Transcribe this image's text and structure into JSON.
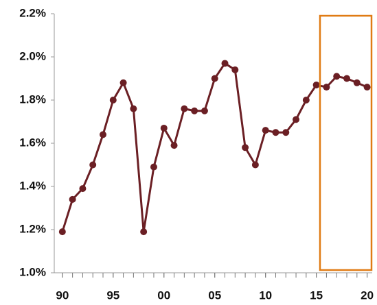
{
  "chart_data": {
    "type": "line",
    "x": [
      1990,
      1991,
      1992,
      1993,
      1994,
      1995,
      1996,
      1997,
      1998,
      1999,
      2000,
      2001,
      2002,
      2003,
      2004,
      2005,
      2006,
      2007,
      2008,
      2009,
      2010,
      2011,
      2012,
      2013,
      2014,
      2015,
      2016,
      2017,
      2018,
      2019,
      2020
    ],
    "series": [
      {
        "color": "#6b1f24",
        "values": [
          1.19,
          1.34,
          1.39,
          1.5,
          1.64,
          1.8,
          1.88,
          1.76,
          1.19,
          1.49,
          1.67,
          1.59,
          1.76,
          1.75,
          1.75,
          1.9,
          1.97,
          1.94,
          1.58,
          1.5,
          1.66,
          1.65,
          1.65,
          1.71,
          1.8,
          1.87,
          1.86,
          1.91,
          1.9,
          1.88,
          1.86
        ]
      }
    ],
    "xlim": [
      1989.2,
      2020.5
    ],
    "xticks": [
      {
        "value": 1990,
        "label": "90"
      },
      {
        "value": 1995,
        "label": "95"
      },
      {
        "value": 2000,
        "label": "00"
      },
      {
        "value": 2005,
        "label": "05"
      },
      {
        "value": 2010,
        "label": "10"
      },
      {
        "value": 2015,
        "label": "15"
      },
      {
        "value": 2020,
        "label": "20"
      }
    ],
    "ylim": [
      1.0,
      2.2
    ],
    "yticks": [
      {
        "value": 1.0,
        "label": "1.0%"
      },
      {
        "value": 1.2,
        "label": "1.2%"
      },
      {
        "value": 1.4,
        "label": "1.4%"
      },
      {
        "value": 1.6,
        "label": "1.6%"
      },
      {
        "value": 1.8,
        "label": "1.8%"
      },
      {
        "value": 2.0,
        "label": "2.0%"
      },
      {
        "value": 2.2,
        "label": "2.2%"
      }
    ],
    "grid": false
  }
}
